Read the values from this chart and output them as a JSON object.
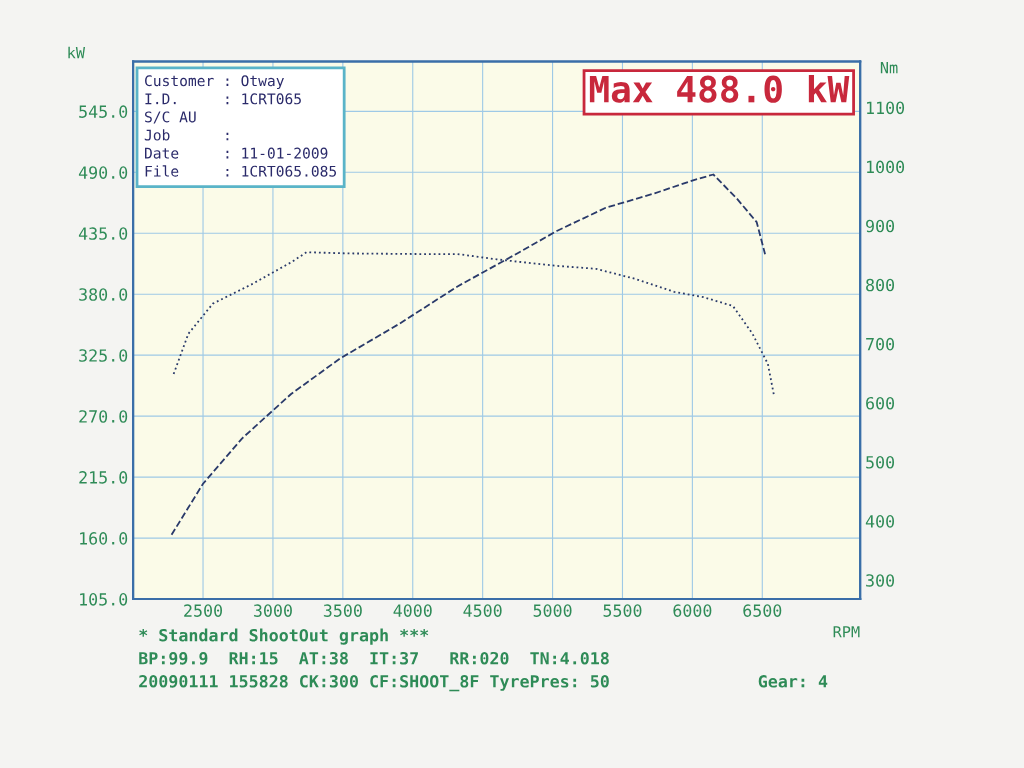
{
  "chart_data": {
    "type": "line",
    "title": "Max 488.0 kW",
    "xlabel": "RPM",
    "ylabel": "kW",
    "y2label": "Nm",
    "xlim": [
      2000,
      7200
    ],
    "xticks": [
      2500,
      3000,
      3500,
      4000,
      4500,
      5000,
      5500,
      6000,
      6500
    ],
    "ylim": [
      105,
      590
    ],
    "yticks": [
      {
        "value": 105,
        "label": "105.0"
      },
      {
        "value": 160,
        "label": "160.0"
      },
      {
        "value": 215,
        "label": "215.0"
      },
      {
        "value": 270,
        "label": "270.0"
      },
      {
        "value": 325,
        "label": "325.0"
      },
      {
        "value": 380,
        "label": "380.0"
      },
      {
        "value": 435,
        "label": "435.0"
      },
      {
        "value": 490,
        "label": "490.0"
      },
      {
        "value": 545,
        "label": "545.0"
      }
    ],
    "y2lim": [
      268,
      1178
    ],
    "y2ticks": [
      300,
      400,
      500,
      600,
      700,
      800,
      900,
      1000,
      1100
    ],
    "grid": true,
    "marker": "none",
    "series": [
      {
        "color": "#2a3a6a",
        "line_style": "dashed",
        "x": [
          2275,
          2500,
          2780,
          3130,
          3480,
          3900,
          4320,
          4750,
          5030,
          5380,
          5730,
          6010,
          6150,
          6320,
          6460,
          6520
        ],
        "values": [
          163,
          209,
          250,
          290,
          322,
          353,
          387,
          417,
          437,
          458,
          471,
          483,
          488,
          466,
          445,
          416
        ]
      },
      {
        "color": "#2a3a6a",
        "line_style": "dotted",
        "axis": "y2",
        "x": [
          2290,
          2395,
          2570,
          2850,
          3130,
          3240,
          3550,
          4040,
          4320,
          4600,
          5030,
          5310,
          5590,
          5870,
          6080,
          6290,
          6430,
          6540,
          6585
        ],
        "values": [
          649,
          717,
          768,
          801,
          838,
          855,
          853,
          852,
          852,
          843,
          832,
          827,
          810,
          788,
          779,
          764,
          717,
          666,
          611
        ]
      }
    ],
    "annotations": [
      "Customer : Otway",
      "I.D.     : 1CRT065",
      "S/C AU",
      "Job      :",
      "Date     : 11-01-2009",
      "File     : 1CRT065.085",
      "* Standard ShootOut graph ***",
      "BP:99.9  RH:15  AT:38  IT:37   RR:020  TN:4.018",
      "20090111 155828 CK:300 CF:SHOOT_8F TyrePres: 50",
      "Gear: 4"
    ]
  }
}
